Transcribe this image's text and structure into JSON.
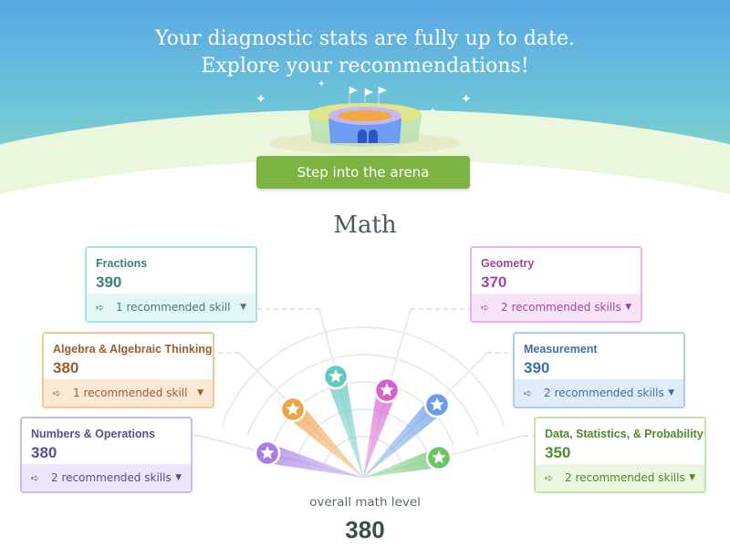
{
  "banner": {
    "line1": "Your diagnostic stats are fully up to date.",
    "line2": "Explore your recommendations!",
    "button": "Step into the arena"
  },
  "subject": "Math",
  "overall": {
    "label": "overall math level",
    "value": "380"
  },
  "domains": [
    {
      "name": "Fractions",
      "score": "390",
      "recs": "1 recommended skill",
      "color": "#3d7f7a",
      "border": "#a6e3e0",
      "bg": "#e2f6f5",
      "star": "#5fc9c0"
    },
    {
      "name": "Geometry",
      "score": "370",
      "recs": "2 recommended skills",
      "color": "#a3479c",
      "border": "#eab3e8",
      "bg": "#f7e3f6",
      "star": "#d65fd0"
    },
    {
      "name": "Algebra & Algebraic Thinking",
      "score": "380",
      "recs": "1 recommended skill",
      "color": "#9a5e2c",
      "border": "#f2c795",
      "bg": "#fbe9d6",
      "star": "#eea24a"
    },
    {
      "name": "Measurement",
      "score": "390",
      "recs": "2 recommended skills",
      "color": "#3c6fa8",
      "border": "#aecbf0",
      "bg": "#e1ecfa",
      "star": "#6b9cea"
    },
    {
      "name": "Numbers & Operations",
      "score": "380",
      "recs": "2 recommended skills",
      "color": "#5b4e85",
      "border": "#cdb9f0",
      "bg": "#eee5fb",
      "star": "#a87ee6"
    },
    {
      "name": "Data, Statistics, & Probability",
      "score": "350",
      "recs": "2 recommended skills",
      "color": "#4f8a2a",
      "border": "#bfe3ab",
      "bg": "#e9f7e1",
      "star": "#6cc46a"
    }
  ]
}
